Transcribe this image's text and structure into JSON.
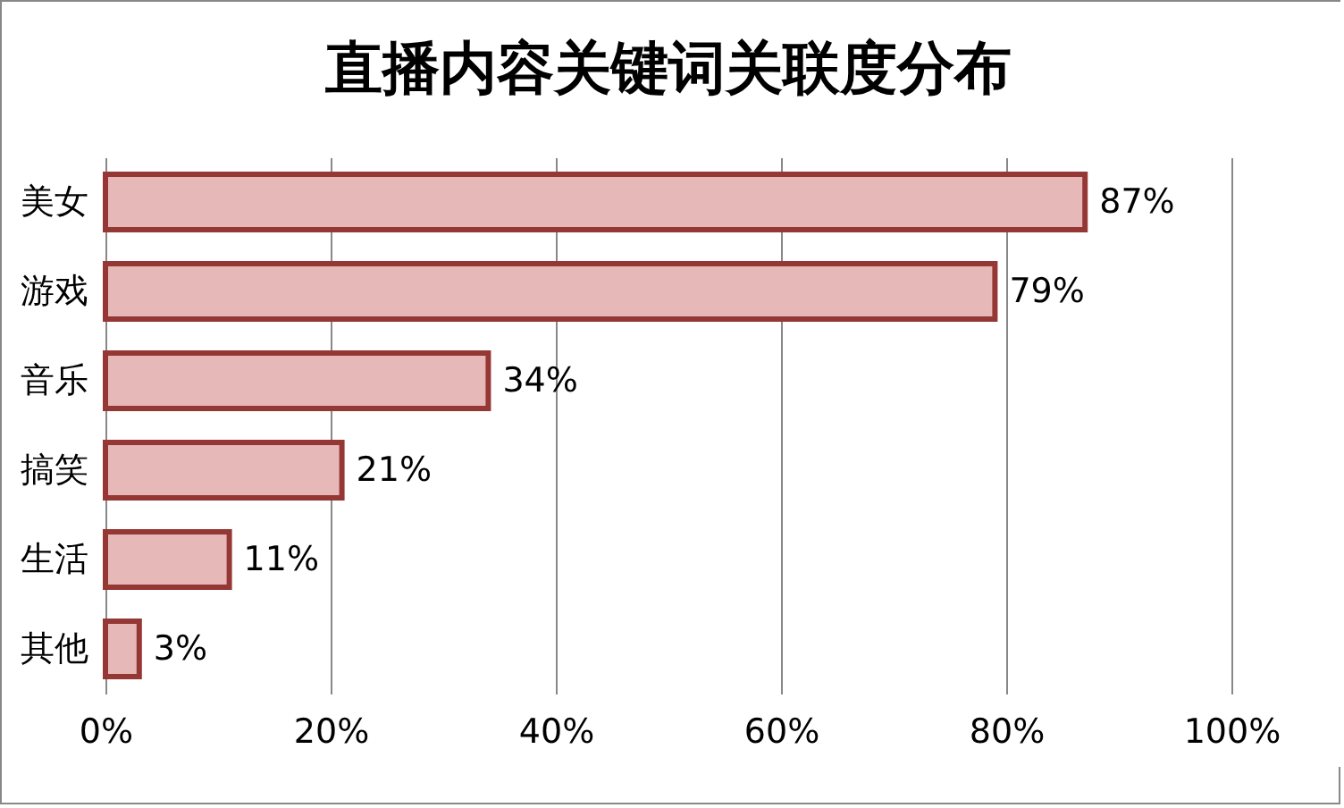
{
  "chart_data": {
    "type": "bar",
    "orientation": "horizontal",
    "title": "直播内容关键词关联度分布",
    "categories": [
      "美女",
      "游戏",
      "音乐",
      "搞笑",
      "生活",
      "其他"
    ],
    "values": [
      87,
      79,
      34,
      21,
      11,
      3
    ],
    "value_labels": [
      "87%",
      "79%",
      "34%",
      "21%",
      "11%",
      "3%"
    ],
    "color": "#e6b9b8",
    "xlim": [
      0,
      100
    ],
    "xticks": [
      {
        "value": 0,
        "label": "0%"
      },
      {
        "value": 20,
        "label": "20%"
      },
      {
        "value": 40,
        "label": "40%"
      },
      {
        "value": 60,
        "label": "60%"
      },
      {
        "value": 80,
        "label": "80%"
      },
      {
        "value": 100,
        "label": "100%"
      }
    ],
    "grid": "x"
  }
}
